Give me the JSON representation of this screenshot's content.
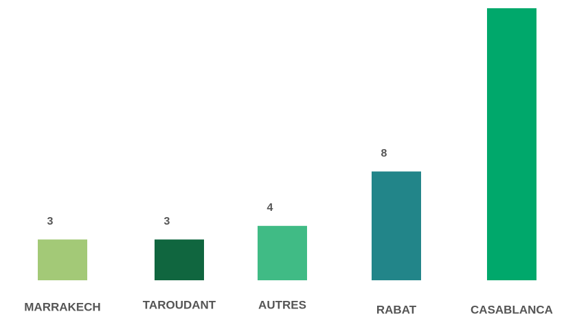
{
  "chart_data": {
    "type": "bar",
    "categories": [
      "MARRAKECH",
      "TAROUDANT",
      "AUTRES",
      "RABAT",
      "CASABLANCA"
    ],
    "values": [
      3,
      3,
      4,
      8,
      20
    ],
    "value_labels": [
      "3",
      "3",
      "4",
      "8",
      null
    ],
    "colors": [
      "#a3c977",
      "#10663f",
      "#40bb85",
      "#228589",
      "#00a86b"
    ],
    "ylim": [
      0,
      20
    ]
  }
}
